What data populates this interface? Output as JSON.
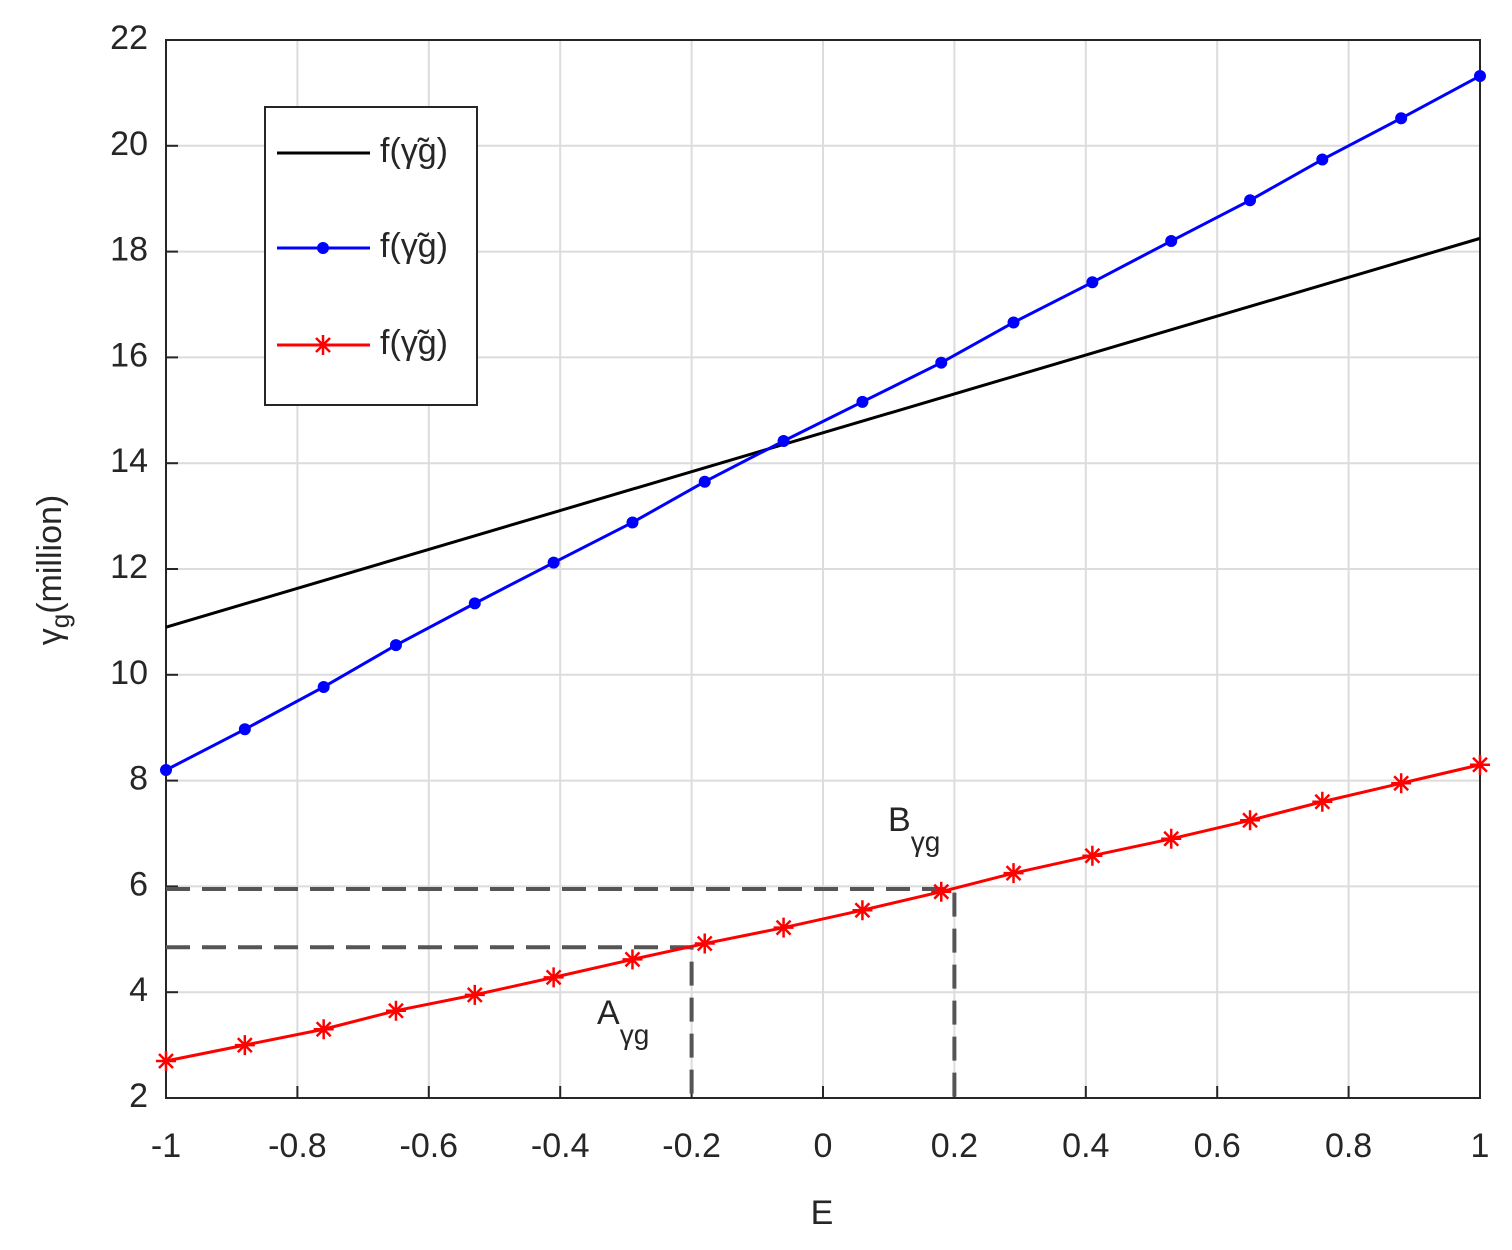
{
  "chart_data": {
    "type": "line",
    "xlabel": "E",
    "ylabel": {
      "symbol": "γ",
      "sub": "g",
      "text": "(million)"
    },
    "xlim": [
      -1,
      1
    ],
    "xticks": [
      -1,
      -0.8,
      -0.6,
      -0.4,
      -0.2,
      0,
      0.2,
      0.4,
      0.6,
      0.8,
      1
    ],
    "ylim": [
      2,
      22
    ],
    "yticks": [
      2,
      4,
      6,
      8,
      10,
      12,
      14,
      16,
      18,
      20,
      22
    ],
    "grid": true,
    "legend": "upper left",
    "series": [
      {
        "name": "f(γ̃g)",
        "color": "#000000",
        "marker": "none",
        "x": [
          -1,
          1
        ],
        "values": [
          10.9,
          18.25
        ]
      },
      {
        "name": "f(γ̃g)",
        "color": "#0000ff",
        "marker": "dot",
        "x": [
          -1,
          -0.88,
          -0.76,
          -0.65,
          -0.53,
          -0.41,
          -0.29,
          -0.18,
          -0.06,
          0.06,
          0.18,
          0.29,
          0.41,
          0.53,
          0.65,
          0.76,
          0.88,
          1
        ],
        "values": [
          8.2,
          8.97,
          9.77,
          10.56,
          11.35,
          12.12,
          12.88,
          13.65,
          14.42,
          15.16,
          15.9,
          16.66,
          17.42,
          18.2,
          18.97,
          19.74,
          20.52,
          21.32
        ]
      },
      {
        "name": "f(γ̃g)",
        "color": "#ff0000",
        "marker": "asterisk",
        "x": [
          -1,
          -0.88,
          -0.76,
          -0.65,
          -0.53,
          -0.41,
          -0.29,
          -0.18,
          -0.06,
          0.06,
          0.18,
          0.29,
          0.41,
          0.53,
          0.65,
          0.76,
          0.88,
          1
        ],
        "values": [
          2.7,
          3.0,
          3.3,
          3.65,
          3.95,
          4.28,
          4.62,
          4.92,
          5.22,
          5.55,
          5.9,
          6.25,
          6.58,
          6.9,
          7.25,
          7.6,
          7.95,
          8.3
        ]
      }
    ],
    "reference_points": [
      {
        "label": "A",
        "sub": "γg",
        "x": -0.2,
        "y": 4.85
      },
      {
        "label": "B",
        "sub": "γg",
        "x": 0.2,
        "y": 5.95
      }
    ]
  }
}
